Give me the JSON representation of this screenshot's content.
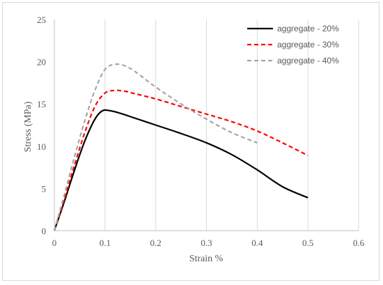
{
  "chart_data": {
    "type": "line",
    "title": "",
    "xlabel": "Strain %",
    "ylabel": "Stress (MPa)",
    "xlim": [
      0,
      0.6
    ],
    "ylim": [
      0,
      25
    ],
    "x_ticks": [
      "0",
      "0.1",
      "0.2",
      "0.3",
      "0.4",
      "0.5",
      "0.6"
    ],
    "y_ticks": [
      "0",
      "5",
      "10",
      "15",
      "20",
      "25"
    ],
    "grid": "vertical",
    "legend_position": "top-right",
    "series": [
      {
        "name": "aggregate - 20%",
        "color": "#000000",
        "style": "solid",
        "x": [
          0,
          0.02,
          0.04,
          0.06,
          0.08,
          0.095,
          0.11,
          0.13,
          0.15,
          0.2,
          0.25,
          0.3,
          0.35,
          0.4,
          0.45,
          0.5
        ],
        "y": [
          0,
          3.5,
          7.2,
          10.6,
          13.2,
          14.2,
          14.2,
          13.9,
          13.5,
          12.5,
          11.5,
          10.4,
          9.0,
          7.2,
          5.2,
          3.9
        ]
      },
      {
        "name": "aggregate - 30%",
        "color": "#ff0000",
        "style": "dashed",
        "x": [
          0,
          0.02,
          0.04,
          0.06,
          0.08,
          0.1,
          0.12,
          0.14,
          0.16,
          0.2,
          0.25,
          0.3,
          0.35,
          0.4,
          0.45,
          0.5
        ],
        "y": [
          0,
          3.8,
          7.8,
          11.6,
          14.7,
          16.3,
          16.6,
          16.5,
          16.2,
          15.6,
          14.7,
          13.8,
          12.9,
          11.8,
          10.4,
          8.9
        ]
      },
      {
        "name": "aggregate - 40%",
        "color": "#a6a6a6",
        "style": "dashed",
        "x": [
          0,
          0.02,
          0.04,
          0.06,
          0.08,
          0.1,
          0.12,
          0.14,
          0.16,
          0.2,
          0.25,
          0.3,
          0.35,
          0.4
        ],
        "y": [
          0,
          4.3,
          8.8,
          13.0,
          16.6,
          19.1,
          19.7,
          19.5,
          18.8,
          17.0,
          15.0,
          13.2,
          11.6,
          10.4
        ]
      }
    ]
  }
}
